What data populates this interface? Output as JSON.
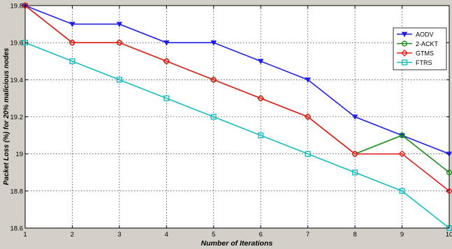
{
  "chart_data": {
    "type": "line",
    "xlabel": "Number of Iterations",
    "ylabel": "Packet Loss (%) for 20% malicious nodes",
    "x": [
      1,
      2,
      3,
      4,
      5,
      6,
      7,
      8,
      9,
      10
    ],
    "xlim": [
      1,
      10
    ],
    "ylim": [
      18.6,
      19.8
    ],
    "xticks": [
      "1",
      "2",
      "3",
      "4",
      "5",
      "6",
      "7",
      "8",
      "9",
      "10"
    ],
    "yticks": [
      "18.6",
      "18.8",
      "19",
      "19.2",
      "19.4",
      "19.6",
      "19.8"
    ],
    "grid": true,
    "legend_position": "top-right",
    "series": [
      {
        "name": "AODV",
        "color": "#1f1fe6",
        "marker": "triangle-down",
        "values": [
          19.8,
          19.7,
          19.7,
          19.6,
          19.6,
          19.5,
          19.4,
          19.2,
          19.1,
          19.0
        ]
      },
      {
        "name": "2-ACKT",
        "color": "#1a8c1a",
        "marker": "circle",
        "values": [
          19.8,
          19.6,
          19.6,
          19.5,
          19.4,
          19.3,
          19.2,
          19.0,
          19.1,
          18.9
        ]
      },
      {
        "name": "GTMS",
        "color": "#e61f1f",
        "marker": "diamond",
        "values": [
          19.8,
          19.6,
          19.6,
          19.5,
          19.4,
          19.3,
          19.2,
          19.0,
          19.0,
          18.8
        ]
      },
      {
        "name": "FTRS",
        "color": "#17bcbc",
        "marker": "square",
        "values": [
          19.6,
          19.5,
          19.4,
          19.3,
          19.2,
          19.1,
          19.0,
          18.9,
          18.8,
          18.6
        ]
      }
    ]
  }
}
